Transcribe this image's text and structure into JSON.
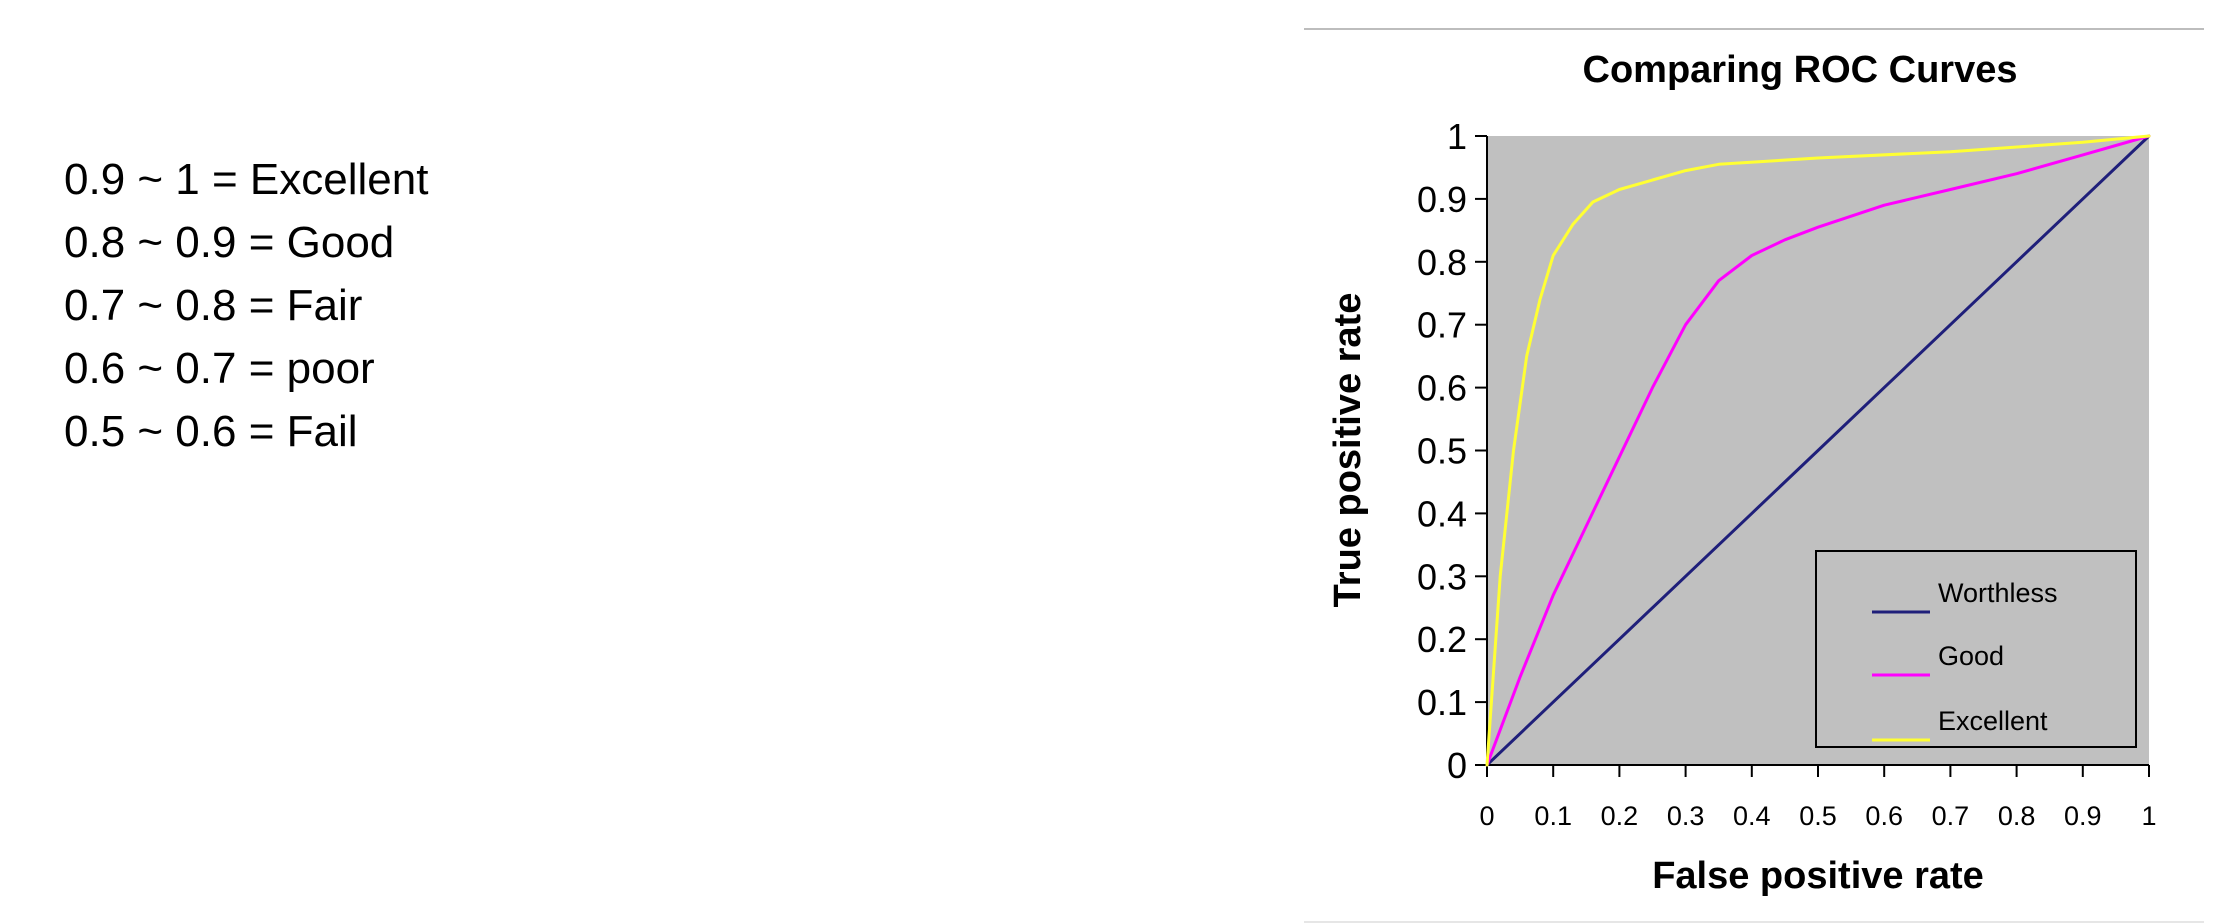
{
  "scale": {
    "lines": [
      "0.9 ~ 1 = Excellent",
      "0.8 ~ 0.9 = Good",
      "0.7 ~ 0.8 = Fair",
      "0.6 ~ 0.7 = poor",
      "0.5 ~ 0.6 = Fail"
    ]
  },
  "chart_data": {
    "type": "line",
    "title": "Comparing ROC Curves",
    "xlabel": "False positive rate",
    "ylabel": "True positive rate",
    "xlim": [
      0,
      1
    ],
    "ylim": [
      0,
      1
    ],
    "xticks": [
      "0",
      "0.1",
      "0.2",
      "0.3",
      "0.4",
      "0.5",
      "0.6",
      "0.7",
      "0.8",
      "0.9",
      "1"
    ],
    "yticks": [
      "0",
      "0.1",
      "0.2",
      "0.3",
      "0.4",
      "0.5",
      "0.6",
      "0.7",
      "0.8",
      "0.9",
      "1"
    ],
    "grid": false,
    "plot_background": "#c0c0c0",
    "legend_position": "bottom-right",
    "series": [
      {
        "name": "Worthless",
        "color": "#1f1f7a",
        "x": [
          0,
          0.1,
          0.2,
          0.3,
          0.4,
          0.5,
          0.6,
          0.7,
          0.8,
          0.9,
          1
        ],
        "y": [
          0,
          0.1,
          0.2,
          0.3,
          0.4,
          0.5,
          0.6,
          0.7,
          0.8,
          0.9,
          1
        ]
      },
      {
        "name": "Good",
        "color": "#ff00ff",
        "x": [
          0,
          0.05,
          0.1,
          0.15,
          0.2,
          0.25,
          0.3,
          0.35,
          0.4,
          0.45,
          0.5,
          0.6,
          0.7,
          0.8,
          0.9,
          1
        ],
        "y": [
          0,
          0.14,
          0.27,
          0.38,
          0.49,
          0.6,
          0.7,
          0.77,
          0.81,
          0.835,
          0.855,
          0.89,
          0.915,
          0.94,
          0.97,
          1
        ]
      },
      {
        "name": "Excellent",
        "color": "#ffff33",
        "x": [
          0,
          0.02,
          0.04,
          0.06,
          0.08,
          0.1,
          0.13,
          0.16,
          0.2,
          0.25,
          0.3,
          0.35,
          0.5,
          0.7,
          0.9,
          1
        ],
        "y": [
          0,
          0.3,
          0.5,
          0.65,
          0.74,
          0.81,
          0.86,
          0.895,
          0.915,
          0.93,
          0.945,
          0.955,
          0.965,
          0.975,
          0.99,
          1
        ]
      }
    ]
  }
}
